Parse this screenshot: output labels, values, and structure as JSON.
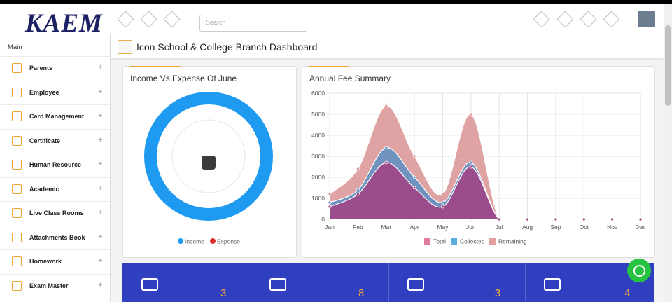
{
  "header": {
    "logo": "KAEM",
    "search_placeholder": "Search"
  },
  "sidebar": {
    "section": "Main",
    "items": [
      "Parents",
      "Employee",
      "Card Management",
      "Certificate",
      "Human Resource",
      "Academic",
      "Live Class Rooms",
      "Attachments Book",
      "Homework",
      "Exam Master"
    ]
  },
  "breadcrumb": {
    "title": "Icon School & College Branch Dashboard"
  },
  "chart_data": [
    {
      "type": "doughnut",
      "title": "Income Vs Expense Of June",
      "categories": [
        "Income",
        "Expense"
      ],
      "values": [
        100,
        0
      ],
      "colors": [
        "#1e9bf0",
        "#d9302b"
      ]
    },
    {
      "type": "area",
      "title": "Annual Fee Summary",
      "categories": [
        "Jan",
        "Feb",
        "Mar",
        "Apr",
        "May",
        "Jun",
        "Jul",
        "Aug",
        "Sep",
        "Oct",
        "Nov",
        "Dec"
      ],
      "series": [
        {
          "name": "Total",
          "color": "#e07aa0",
          "fill": "#a23f82",
          "values": [
            600,
            1200,
            2700,
            1500,
            600,
            2500,
            0,
            0,
            0,
            0,
            0,
            0
          ]
        },
        {
          "name": "Collected",
          "color": "#5aaee0",
          "fill": "#5c8fc4",
          "values": [
            800,
            1400,
            3400,
            2000,
            800,
            2700,
            0,
            0,
            0,
            0,
            0,
            0
          ]
        },
        {
          "name": "Remaining",
          "color": "#e4a0a0",
          "fill": "#d99393",
          "values": [
            1200,
            2400,
            5400,
            3000,
            1200,
            5000,
            0,
            0,
            0,
            0,
            0,
            0
          ]
        }
      ],
      "ylim": [
        0,
        6000
      ],
      "yticks": [
        0,
        1000,
        2000,
        3000,
        4000,
        5000,
        6000
      ],
      "grid": true
    }
  ],
  "stats": {
    "values": [
      3,
      8,
      3,
      4
    ]
  }
}
